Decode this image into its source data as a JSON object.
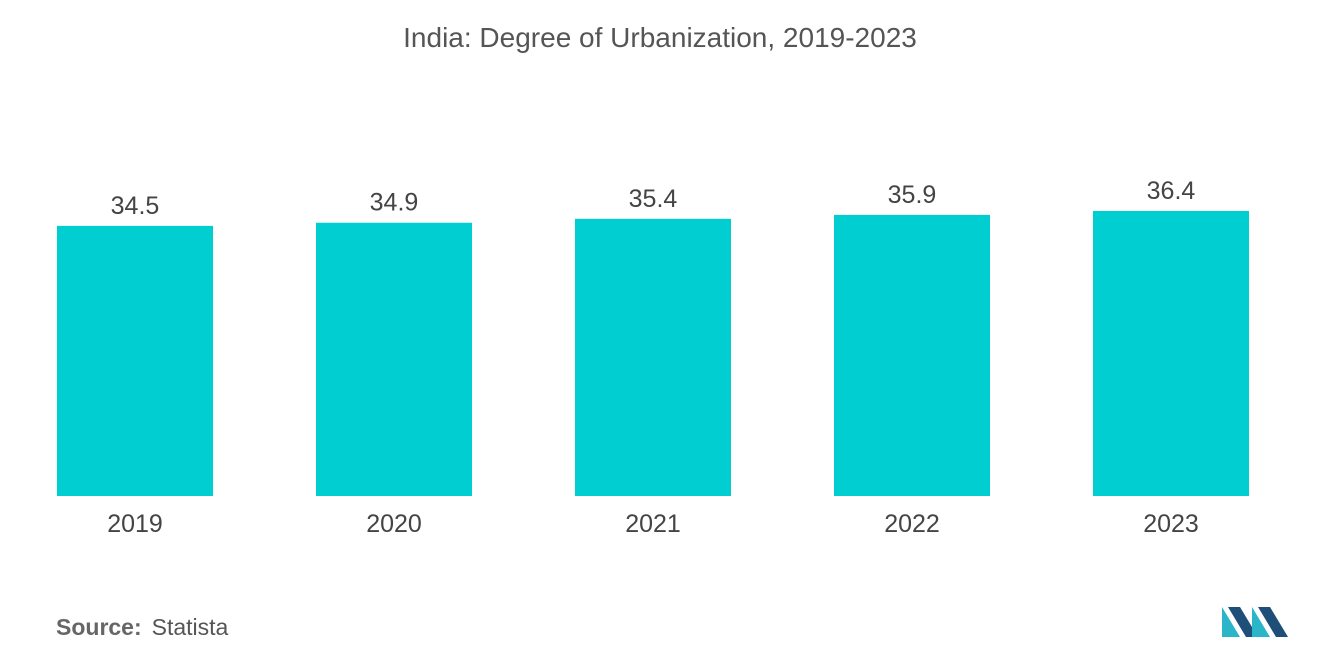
{
  "source": {
    "label": "Source:",
    "value": "Statista"
  },
  "logo": {
    "name": "Mordor Intelligence logo"
  },
  "colors": {
    "bar": "#00CED1",
    "text": "#444444",
    "logo_dark": "#1f4e79",
    "logo_light": "#2bb5c8"
  },
  "chart_data": {
    "type": "bar",
    "title": "India: Degree of Urbanization, 2019-2023",
    "categories": [
      "2019",
      "2020",
      "2021",
      "2022",
      "2023"
    ],
    "values": [
      34.5,
      34.9,
      35.4,
      35.9,
      36.4
    ],
    "value_labels": [
      "34.5",
      "34.9",
      "35.4",
      "35.9",
      "36.4"
    ],
    "xlabel": "",
    "ylabel": "",
    "ylim": [
      0,
      36.4
    ],
    "grid": false,
    "legend": "none"
  }
}
